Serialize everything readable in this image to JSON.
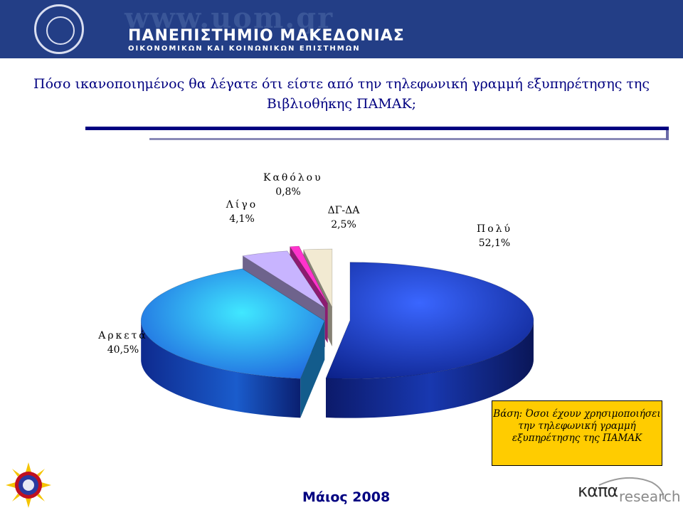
{
  "header": {
    "watermark": "www.uom.gr",
    "university": "ΠΑΝΕΠΙΣΤΗΜΙΟ ΜΑΚΕΔΟΝΙΑΣ",
    "subtitle": "ΟΙΚΟΝΟΜΙΚΩΝ ΚΑΙ ΚΟΙΝΩΝΙΚΩΝ ΕΠΙΣΤΗΜΩΝ"
  },
  "slide": {
    "title_line1": "Πόσο ικανοποιημένος θα λέγατε ότι είστε από την τηλεφωνική γραμμή εξυπηρέτησης της",
    "title_line2": "Βιβλιοθήκης ΠΑΜΑΚ;",
    "base_note": "Βάση: Όσοι έχουν χρησιμοποιήσει την τηλεφωνική γραμμή εξυπηρέτησης της ΠΑΜΑΚ",
    "date": "Μάιος 2008",
    "logo_brand": "καπα",
    "logo_suffix": "research"
  },
  "chart_data": {
    "type": "pie",
    "title": "",
    "slices": [
      {
        "name": "Πολύ",
        "value": 52.1,
        "value_label": "52,1%",
        "color": "#1e3fd4"
      },
      {
        "name": "Αρκετά",
        "value": 40.5,
        "value_label": "40,5%",
        "color": "#22a8ff"
      },
      {
        "name": "Λίγο",
        "value": 4.1,
        "value_label": "4,1%",
        "color": "#c8b4ff"
      },
      {
        "name": "Καθόλου",
        "value": 0.8,
        "value_label": "0,8%",
        "color": "#ff33cc"
      },
      {
        "name": "ΔΓ-ΔΑ",
        "value": 2.5,
        "value_label": "2,5%",
        "color": "#f2ead2"
      }
    ]
  }
}
